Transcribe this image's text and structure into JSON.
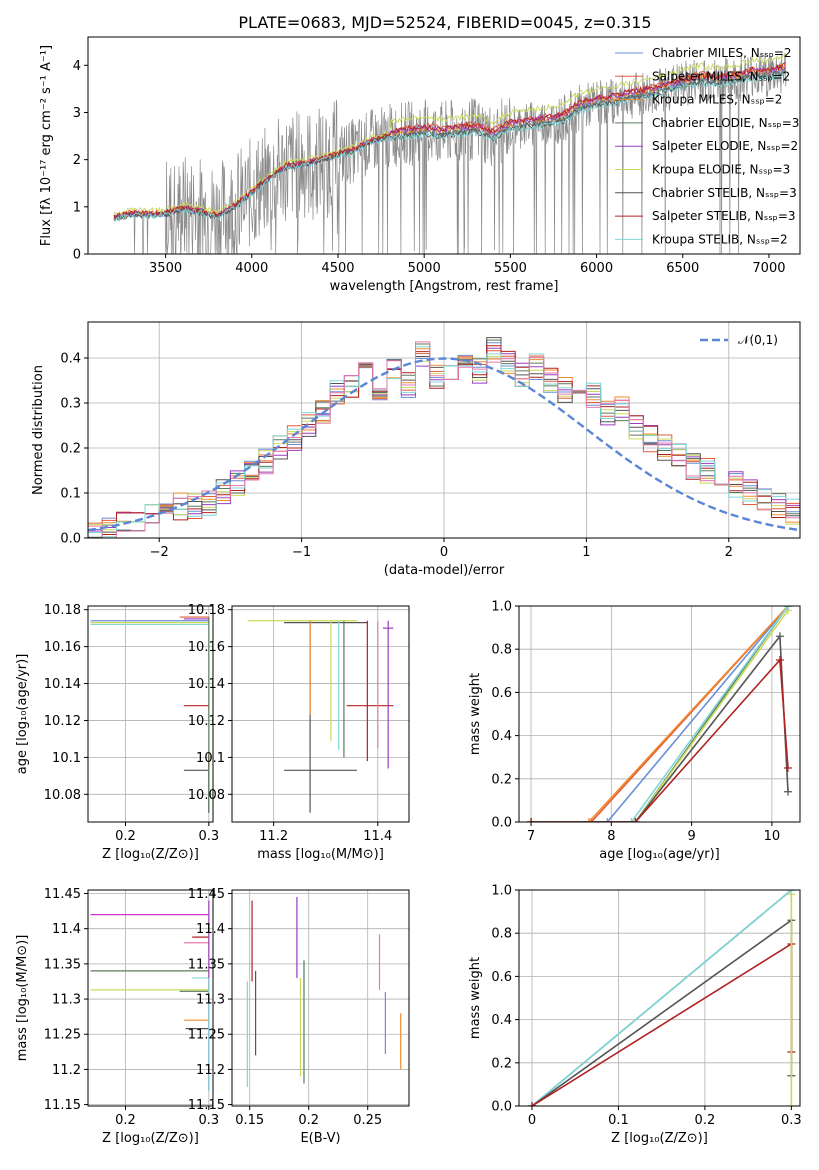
{
  "figure": {
    "title": "PLATE=0683, MJD=52524, FIBERID=0045, z=0.315"
  },
  "colors": {
    "chabrier_miles": "#6a8fd8",
    "salpeter_miles": "#e25d3a",
    "kroupa_miles": "#f08a2c",
    "chabrier_elodie": "#5c7a5c",
    "salpeter_elodie": "#9a3cc0",
    "kroupa_elodie": "#c9d95a",
    "chabrier_stelib": "#555555",
    "salpeter_stelib": "#b22222",
    "kroupa_stelib": "#7fd6d6",
    "raw_spectrum": "#8a8a8a",
    "gaussian": "#5b86d6",
    "pink": "#e67ab0",
    "magenta": "#cc33cc"
  },
  "chart_data": [
    {
      "id": "spectrum",
      "type": "line",
      "xlabel": "wavelength [Angstrom, rest frame]",
      "ylabel": "Flux [fλ 10⁻¹⁷ erg cm⁻² s⁻¹ A⁻¹]",
      "xlim": [
        3050,
        7180
      ],
      "ylim": [
        0,
        4.6
      ],
      "xticks": [
        3500,
        4000,
        4500,
        5000,
        5500,
        6000,
        6500,
        7000
      ],
      "yticks": [
        0,
        1,
        2,
        3,
        4
      ],
      "legend_position": "top-right",
      "model_curve": {
        "x": [
          3200,
          3300,
          3400,
          3500,
          3600,
          3700,
          3800,
          3900,
          4000,
          4100,
          4200,
          4300,
          4400,
          4500,
          4600,
          4700,
          4800,
          4900,
          5000,
          5100,
          5200,
          5300,
          5400,
          5500,
          5600,
          5700,
          5800,
          5900,
          6000,
          6100,
          6200,
          6300,
          6400,
          6500,
          6600,
          6700,
          6800,
          6900,
          7000,
          7100
        ],
        "y": [
          0.75,
          0.85,
          0.82,
          0.85,
          0.95,
          0.9,
          0.8,
          1.0,
          1.3,
          1.6,
          1.85,
          1.9,
          2.0,
          2.1,
          2.2,
          2.4,
          2.5,
          2.55,
          2.6,
          2.55,
          2.6,
          2.65,
          2.5,
          2.7,
          2.75,
          2.8,
          2.85,
          3.1,
          3.2,
          3.25,
          3.35,
          3.4,
          3.5,
          3.6,
          3.7,
          3.65,
          3.7,
          3.8,
          3.8,
          3.9
        ]
      },
      "series": [
        {
          "name": "Chabrier MILES, Nₛₛₚ=2",
          "color_key": "chabrier_miles",
          "offset": 0.0
        },
        {
          "name": "Salpeter MILES, Nₛₛₚ=2",
          "color_key": "salpeter_miles",
          "offset": 0.12
        },
        {
          "name": "Kroupa MILES, Nₛₛₚ=2",
          "color_key": "kroupa_miles",
          "offset": 0.05
        },
        {
          "name": "Chabrier ELODIE, Nₛₛₚ=3",
          "color_key": "chabrier_elodie",
          "offset": -0.02
        },
        {
          "name": "Salpeter ELODIE, Nₛₛₚ=2",
          "color_key": "salpeter_elodie",
          "offset": 0.08
        },
        {
          "name": "Kroupa ELODIE, Nₛₛₚ=3",
          "color_key": "kroupa_elodie",
          "offset": 0.3
        },
        {
          "name": "Chabrier STELIB, Nₛₛₚ=3",
          "color_key": "chabrier_stelib",
          "offset": -0.05
        },
        {
          "name": "Salpeter STELIB, Nₛₛₚ=3",
          "color_key": "salpeter_stelib",
          "offset": 0.1
        },
        {
          "name": "Kroupa STELIB, Nₛₛₚ=2",
          "color_key": "kroupa_stelib",
          "offset": -0.08
        }
      ]
    },
    {
      "id": "residuals",
      "type": "histogram",
      "xlabel": "(data-model)/error",
      "ylabel": "Normed distribution",
      "xlim": [
        -2.5,
        2.5
      ],
      "ylim": [
        0,
        0.48
      ],
      "xticks": [
        -2,
        -1,
        0,
        1,
        2
      ],
      "yticks": [
        0.0,
        0.1,
        0.2,
        0.3,
        0.4
      ],
      "grid": true,
      "legend_position": "top-right",
      "gaussian_label": "𝒩(0,1)",
      "bin_edges_start": -2.5,
      "bin_width": 0.1,
      "base_values": [
        0.01,
        0.02,
        0.03,
        0.04,
        0.05,
        0.06,
        0.07,
        0.07,
        0.08,
        0.1,
        0.12,
        0.15,
        0.17,
        0.2,
        0.22,
        0.25,
        0.28,
        0.32,
        0.34,
        0.36,
        0.33,
        0.38,
        0.34,
        0.41,
        0.36,
        0.38,
        0.4,
        0.37,
        0.42,
        0.39,
        0.36,
        0.38,
        0.35,
        0.33,
        0.3,
        0.32,
        0.28,
        0.29,
        0.25,
        0.22,
        0.2,
        0.18,
        0.16,
        0.15,
        0.13,
        0.12,
        0.1,
        0.09,
        0.07,
        0.06
      ]
    },
    {
      "id": "age_vs_Z",
      "type": "errorbar",
      "xlabel": "Z [log₁₀(Z/Z⊙)]",
      "ylabel": "age  [log₁₀(age/yr)]",
      "xlim": [
        0.155,
        0.305
      ],
      "ylim": [
        10.065,
        10.182
      ],
      "xticks": [
        0.2,
        0.3
      ],
      "yticks": [
        10.08,
        10.1,
        10.12,
        10.14,
        10.16,
        10.18
      ],
      "grid": true,
      "points": [
        {
          "x": 0.3,
          "y": 10.174,
          "xlo": 0.158,
          "xhi": 0.3,
          "ylo": 10.174,
          "yhi": 10.174,
          "c": "chabrier_miles"
        },
        {
          "x": 0.3,
          "y": 10.173,
          "xlo": 0.158,
          "xhi": 0.3,
          "ylo": 10.173,
          "yhi": 10.173,
          "c": "kroupa_elodie"
        },
        {
          "x": 0.3,
          "y": 10.172,
          "xlo": 0.158,
          "xhi": 0.3,
          "ylo": 10.172,
          "yhi": 10.172,
          "c": "kroupa_stelib"
        },
        {
          "x": 0.3,
          "y": 10.176,
          "xlo": 0.265,
          "xhi": 0.3,
          "ylo": 10.176,
          "yhi": 10.176,
          "c": "salpeter_miles"
        },
        {
          "x": 0.3,
          "y": 10.175,
          "xlo": 0.27,
          "xhi": 0.3,
          "ylo": 10.175,
          "yhi": 10.175,
          "c": "salpeter_elodie"
        },
        {
          "x": 0.3,
          "y": 10.128,
          "xlo": 0.27,
          "xhi": 0.3,
          "ylo": 10.128,
          "yhi": 10.128,
          "c": "salpeter_stelib"
        },
        {
          "x": 0.3,
          "y": 10.093,
          "xlo": 0.27,
          "xhi": 0.3,
          "ylo": 10.07,
          "yhi": 10.1,
          "c": "chabrier_stelib"
        },
        {
          "x": 0.3,
          "y": 10.1,
          "xlo": 0.3,
          "xhi": 0.3,
          "ylo": 10.095,
          "yhi": 10.102,
          "c": "salpeter_stelib"
        },
        {
          "x": 0.3,
          "y": 10.17,
          "xlo": 0.3,
          "xhi": 0.3,
          "ylo": 10.07,
          "yhi": 10.176,
          "c": "chabrier_elodie"
        }
      ]
    },
    {
      "id": "age_vs_mass",
      "type": "errorbar",
      "xlabel": "mass [log₁₀(M/M⊙)]",
      "ylabel": "",
      "xlim": [
        11.12,
        11.46
      ],
      "ylim": [
        10.065,
        10.182
      ],
      "xticks": [
        11.2,
        11.4
      ],
      "yticks": [
        10.08,
        10.1,
        10.12,
        10.14,
        10.16,
        10.18
      ],
      "grid": true,
      "points": [
        {
          "x": 11.3,
          "y": 10.174,
          "xlo": 11.15,
          "xhi": 11.36,
          "ylo": 10.174,
          "yhi": 10.174,
          "c": "kroupa_elodie"
        },
        {
          "x": 11.33,
          "y": 10.173,
          "xlo": 11.22,
          "xhi": 11.38,
          "ylo": 10.173,
          "yhi": 10.173,
          "c": "chabrier_stelib"
        },
        {
          "x": 11.27,
          "y": 10.093,
          "xlo": 11.22,
          "xhi": 11.36,
          "ylo": 10.07,
          "yhi": 10.174,
          "c": "chabrier_stelib"
        },
        {
          "x": 11.27,
          "y": 10.17,
          "xlo": 11.27,
          "xhi": 11.27,
          "ylo": 10.123,
          "yhi": 10.174,
          "c": "kroupa_miles"
        },
        {
          "x": 11.31,
          "y": 10.15,
          "xlo": 11.31,
          "xhi": 11.31,
          "ylo": 10.109,
          "yhi": 10.174,
          "c": "kroupa_elodie"
        },
        {
          "x": 11.325,
          "y": 10.15,
          "xlo": 11.325,
          "xhi": 11.325,
          "ylo": 10.104,
          "yhi": 10.174,
          "c": "kroupa_stelib"
        },
        {
          "x": 11.335,
          "y": 10.15,
          "xlo": 11.335,
          "xhi": 11.335,
          "ylo": 10.1,
          "yhi": 10.174,
          "c": "chabrier_elodie"
        },
        {
          "x": 11.38,
          "y": 10.128,
          "xlo": 11.34,
          "xhi": 11.43,
          "ylo": 10.128,
          "yhi": 10.128,
          "c": "salpeter_stelib"
        },
        {
          "x": 11.38,
          "y": 10.15,
          "xlo": 11.38,
          "xhi": 11.38,
          "ylo": 10.098,
          "yhi": 10.174,
          "c": "salpeter_stelib"
        },
        {
          "x": 11.4,
          "y": 10.15,
          "xlo": 11.4,
          "xhi": 11.4,
          "ylo": 10.105,
          "yhi": 10.174,
          "c": "pink"
        },
        {
          "x": 11.42,
          "y": 10.17,
          "xlo": 11.41,
          "xhi": 11.43,
          "ylo": 10.094,
          "yhi": 10.174,
          "c": "salpeter_elodie"
        }
      ]
    },
    {
      "id": "weight_vs_age",
      "type": "line",
      "xlabel": "age  [log₁₀(age/yr)]",
      "ylabel": "mass weight",
      "xlim": [
        6.85,
        10.35
      ],
      "ylim": [
        0,
        1.0
      ],
      "xticks": [
        7,
        8,
        9,
        10
      ],
      "yticks": [
        0.0,
        0.2,
        0.4,
        0.6,
        0.8,
        1.0
      ],
      "grid": true,
      "lines": [
        {
          "x": [
            7.0,
            7.95,
            10.2
          ],
          "y": [
            0.0,
            0.0,
            1.0
          ],
          "c": "chabrier_miles"
        },
        {
          "x": [
            7.0,
            7.75,
            10.2
          ],
          "y": [
            0.0,
            0.0,
            1.0
          ],
          "c": "salpeter_miles"
        },
        {
          "x": [
            7.0,
            7.72,
            10.2
          ],
          "y": [
            0.0,
            0.0,
            1.0
          ],
          "c": "kroupa_miles"
        },
        {
          "x": [
            7.0,
            8.3,
            10.2
          ],
          "y": [
            0.0,
            0.0,
            1.0
          ],
          "c": "chabrier_elodie"
        },
        {
          "x": [
            7.0,
            8.3,
            10.2
          ],
          "y": [
            0.0,
            0.0,
            0.98
          ],
          "c": "kroupa_elodie"
        },
        {
          "x": [
            7.0,
            8.25,
            10.2
          ],
          "y": [
            0.0,
            0.0,
            1.0
          ],
          "c": "kroupa_stelib"
        },
        {
          "x": [
            7.0,
            8.3,
            10.1,
            10.2
          ],
          "y": [
            0.0,
            0.0,
            0.86,
            0.14
          ],
          "c": "chabrier_stelib"
        },
        {
          "x": [
            7.0,
            8.3,
            10.1,
            10.2
          ],
          "y": [
            0.0,
            0.0,
            0.75,
            0.25
          ],
          "c": "salpeter_stelib"
        }
      ]
    },
    {
      "id": "mass_vs_Z",
      "type": "errorbar",
      "xlabel": "Z [log₁₀(Z/Z⊙)]",
      "ylabel": "mass [log₁₀(M/M⊙)]",
      "xlim": [
        0.155,
        0.305
      ],
      "ylim": [
        11.148,
        11.455
      ],
      "xticks": [
        0.2,
        0.3
      ],
      "yticks": [
        11.15,
        11.2,
        11.25,
        11.3,
        11.35,
        11.4,
        11.45
      ],
      "grid": true,
      "points": [
        {
          "x": 0.3,
          "y": 11.42,
          "xlo": 0.158,
          "xhi": 0.3,
          "ylo": 11.42,
          "yhi": 11.42,
          "c": "magenta"
        },
        {
          "x": 0.3,
          "y": 11.34,
          "xlo": 0.158,
          "xhi": 0.3,
          "ylo": 11.34,
          "yhi": 11.34,
          "c": "chabrier_elodie"
        },
        {
          "x": 0.3,
          "y": 11.313,
          "xlo": 0.158,
          "xhi": 0.3,
          "ylo": 11.313,
          "yhi": 11.313,
          "c": "kroupa_elodie"
        },
        {
          "x": 0.3,
          "y": 11.38,
          "xlo": 0.27,
          "xhi": 0.3,
          "ylo": 11.38,
          "yhi": 11.38,
          "c": "pink"
        },
        {
          "x": 0.3,
          "y": 11.388,
          "xlo": 0.28,
          "xhi": 0.3,
          "ylo": 11.388,
          "yhi": 11.388,
          "c": "salpeter_stelib"
        },
        {
          "x": 0.3,
          "y": 11.33,
          "xlo": 0.28,
          "xhi": 0.3,
          "ylo": 11.33,
          "yhi": 11.33,
          "c": "kroupa_stelib"
        },
        {
          "x": 0.3,
          "y": 11.311,
          "xlo": 0.265,
          "xhi": 0.3,
          "ylo": 11.311,
          "yhi": 11.311,
          "c": "chabrier_elodie"
        },
        {
          "x": 0.3,
          "y": 11.27,
          "xlo": 0.27,
          "xhi": 0.3,
          "ylo": 11.27,
          "yhi": 11.27,
          "c": "kroupa_miles"
        },
        {
          "x": 0.3,
          "y": 11.258,
          "xlo": 0.272,
          "xhi": 0.3,
          "ylo": 11.258,
          "yhi": 11.258,
          "c": "chabrier_stelib"
        },
        {
          "x": 0.3,
          "y": 11.3,
          "xlo": 0.3,
          "xhi": 0.3,
          "ylo": 11.17,
          "yhi": 11.44,
          "c": "salpeter_elodie"
        },
        {
          "x": 0.3,
          "y": 11.25,
          "xlo": 0.3,
          "xhi": 0.3,
          "ylo": 11.17,
          "yhi": 11.33,
          "c": "kroupa_stelib"
        }
      ]
    },
    {
      "id": "mass_vs_EBV",
      "type": "errorbar",
      "xlabel": "E(B-V)",
      "ylabel": "",
      "xlim": [
        0.135,
        0.285
      ],
      "ylim": [
        11.148,
        11.455
      ],
      "xticks": [
        0.15,
        0.2,
        0.25
      ],
      "yticks": [
        11.15,
        11.2,
        11.25,
        11.3,
        11.35,
        11.4,
        11.45
      ],
      "grid": true,
      "points": [
        {
          "x": 0.148,
          "y": 11.25,
          "xlo": 0.148,
          "xhi": 0.148,
          "ylo": 11.175,
          "yhi": 11.325,
          "c": "kroupa_stelib"
        },
        {
          "x": 0.152,
          "y": 11.38,
          "xlo": 0.152,
          "xhi": 0.152,
          "ylo": 11.325,
          "yhi": 11.44,
          "c": "salpeter_stelib"
        },
        {
          "x": 0.155,
          "y": 11.28,
          "xlo": 0.155,
          "xhi": 0.155,
          "ylo": 11.22,
          "yhi": 11.34,
          "c": "chabrier_stelib"
        },
        {
          "x": 0.19,
          "y": 11.38,
          "xlo": 0.19,
          "xhi": 0.19,
          "ylo": 11.33,
          "yhi": 11.445,
          "c": "salpeter_elodie"
        },
        {
          "x": 0.193,
          "y": 11.26,
          "xlo": 0.193,
          "xhi": 0.193,
          "ylo": 11.19,
          "yhi": 11.33,
          "c": "kroupa_elodie"
        },
        {
          "x": 0.196,
          "y": 11.27,
          "xlo": 0.196,
          "xhi": 0.196,
          "ylo": 11.18,
          "yhi": 11.355,
          "c": "chabrier_elodie"
        },
        {
          "x": 0.26,
          "y": 11.35,
          "xlo": 0.26,
          "xhi": 0.26,
          "ylo": 11.313,
          "yhi": 11.392,
          "c": "pink"
        },
        {
          "x": 0.265,
          "y": 11.27,
          "xlo": 0.265,
          "xhi": 0.265,
          "ylo": 11.222,
          "yhi": 11.31,
          "c": "chabrier_miles"
        },
        {
          "x": 0.278,
          "y": 11.24,
          "xlo": 0.278,
          "xhi": 0.278,
          "ylo": 11.2,
          "yhi": 11.28,
          "c": "kroupa_miles"
        }
      ]
    },
    {
      "id": "weight_vs_Z",
      "type": "line",
      "xlabel": "Z [log₁₀(Z/Z⊙)]",
      "ylabel": "mass weight",
      "xlim": [
        -0.015,
        0.31
      ],
      "ylim": [
        0,
        1.0
      ],
      "xticks": [
        0.0,
        0.1,
        0.2,
        0.3
      ],
      "yticks": [
        0.0,
        0.2,
        0.4,
        0.6,
        0.8,
        1.0
      ],
      "grid": true,
      "lines": [
        {
          "x": [
            0.0,
            0.3
          ],
          "y": [
            0.0,
            1.0
          ],
          "c": "kroupa_elodie"
        },
        {
          "x": [
            0.0,
            0.3
          ],
          "y": [
            0.0,
            1.0
          ],
          "c": "chabrier_miles"
        },
        {
          "x": [
            0.0,
            0.3
          ],
          "y": [
            0.0,
            1.0
          ],
          "c": "kroupa_stelib"
        },
        {
          "x": [
            0.0,
            0.3,
            0.3
          ],
          "y": [
            0.0,
            0.86,
            0.14
          ],
          "c": "chabrier_stelib"
        },
        {
          "x": [
            0.0,
            0.3,
            0.3
          ],
          "y": [
            0.0,
            0.75,
            0.25
          ],
          "c": "salpeter_stelib"
        },
        {
          "x": [
            0.3,
            0.3
          ],
          "y": [
            0.0,
            0.98
          ],
          "c": "kroupa_elodie"
        }
      ]
    }
  ]
}
